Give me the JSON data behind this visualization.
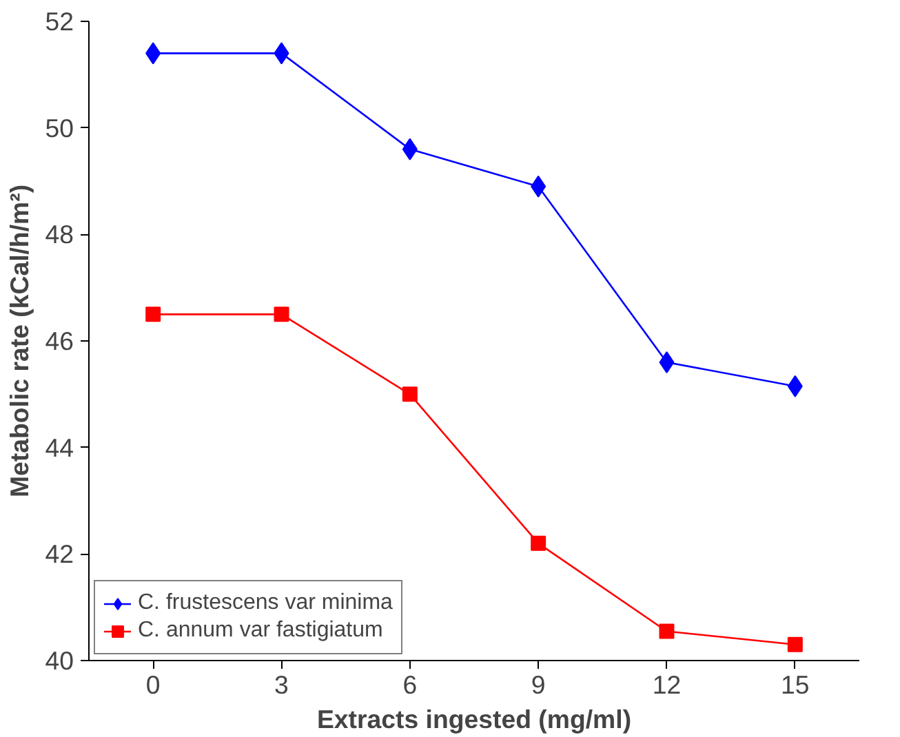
{
  "chart_data": {
    "type": "line",
    "xlabel": "Extracts ingested (mg/ml)",
    "ylabel": "Metabolic rate (kCal/h/m²)",
    "categories": [
      "0",
      "3",
      "6",
      "9",
      "12",
      "15"
    ],
    "series": [
      {
        "name": "C. frustescens var minima",
        "color": "#0000ff",
        "marker": "diamond",
        "values": [
          51.4,
          51.4,
          49.6,
          48.9,
          45.6,
          45.15
        ]
      },
      {
        "name": "C. annum var fastigiatum",
        "color": "#ff0000",
        "marker": "square",
        "values": [
          46.5,
          46.5,
          45.0,
          42.2,
          40.55,
          40.3
        ]
      }
    ],
    "ylim": [
      40,
      52
    ],
    "yticks": [
      40,
      42,
      44,
      46,
      48,
      50,
      52
    ],
    "grid": false,
    "legend": "bottom left",
    "line_style": "solid"
  }
}
